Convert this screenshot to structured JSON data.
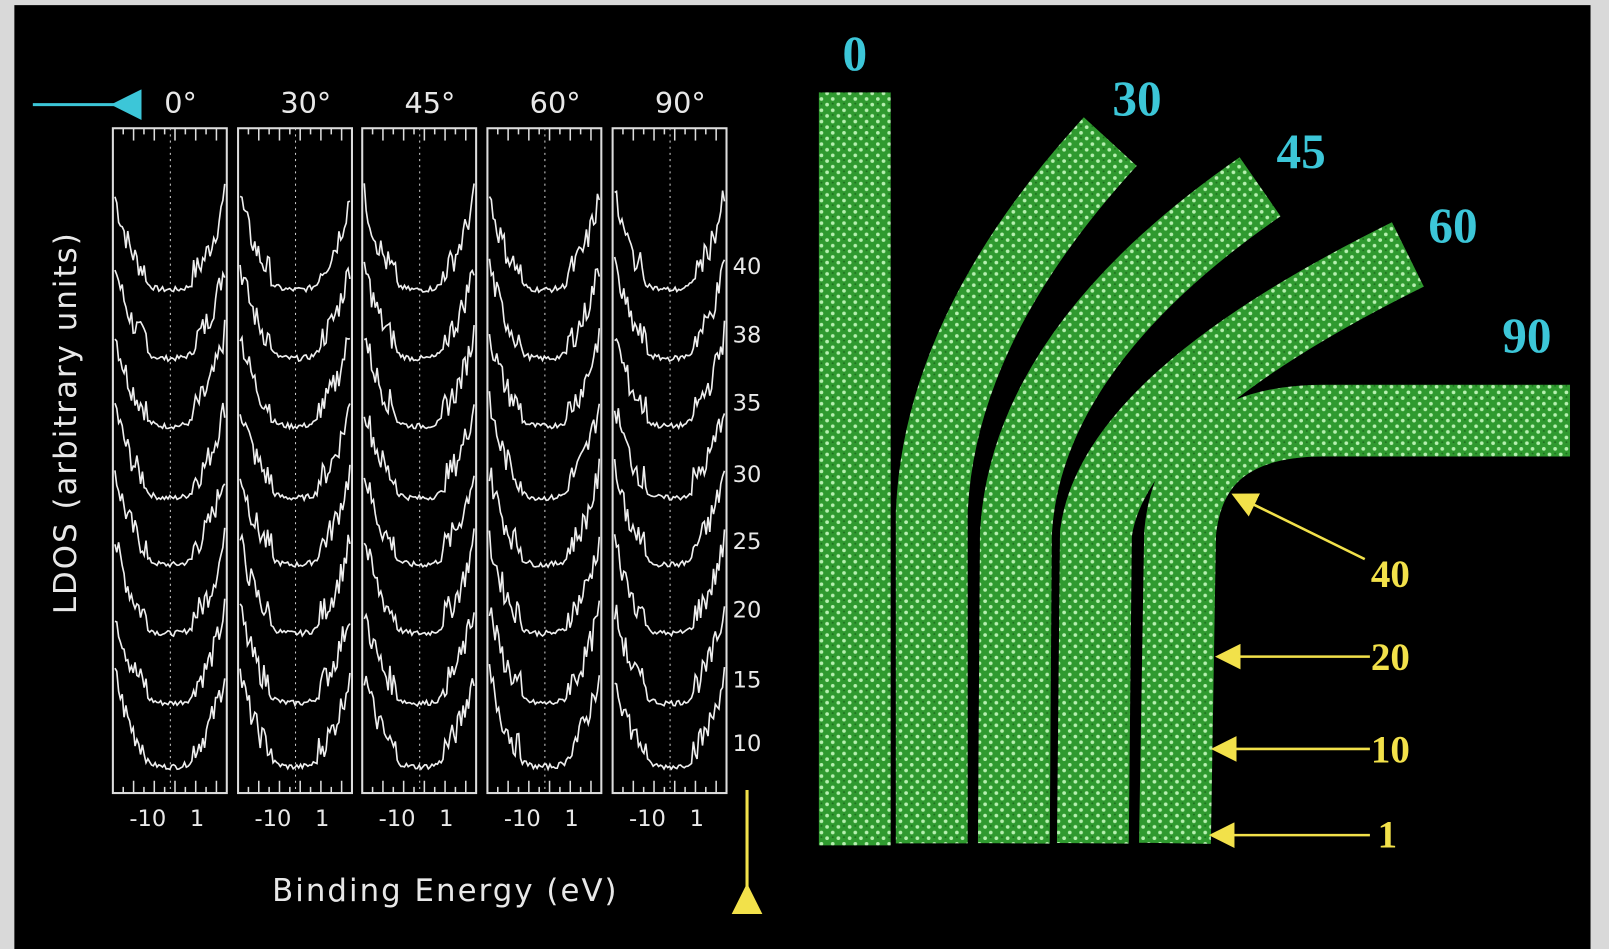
{
  "ldos_panel": {
    "y_axis_label": "LDOS (arbitrary units)",
    "x_axis_label": "Binding Energy (eV)",
    "panels": [
      {
        "angle": "0°",
        "ticks": [
          "-10",
          "1"
        ]
      },
      {
        "angle": "30°",
        "ticks": [
          "-10",
          "1"
        ]
      },
      {
        "angle": "45°",
        "ticks": [
          "-10",
          "1"
        ]
      },
      {
        "angle": "60°",
        "ticks": [
          "-10",
          "1"
        ]
      },
      {
        "angle": "90°",
        "ticks": [
          "-10",
          "1"
        ]
      }
    ],
    "layer_labels": [
      "40",
      "38",
      "35",
      "30",
      "25",
      "20",
      "15",
      "10"
    ]
  },
  "nanotubes": {
    "bend_labels": [
      "0",
      "30",
      "45",
      "60",
      "90"
    ],
    "layer_labels": [
      "40",
      "20",
      "10",
      "1"
    ]
  }
}
